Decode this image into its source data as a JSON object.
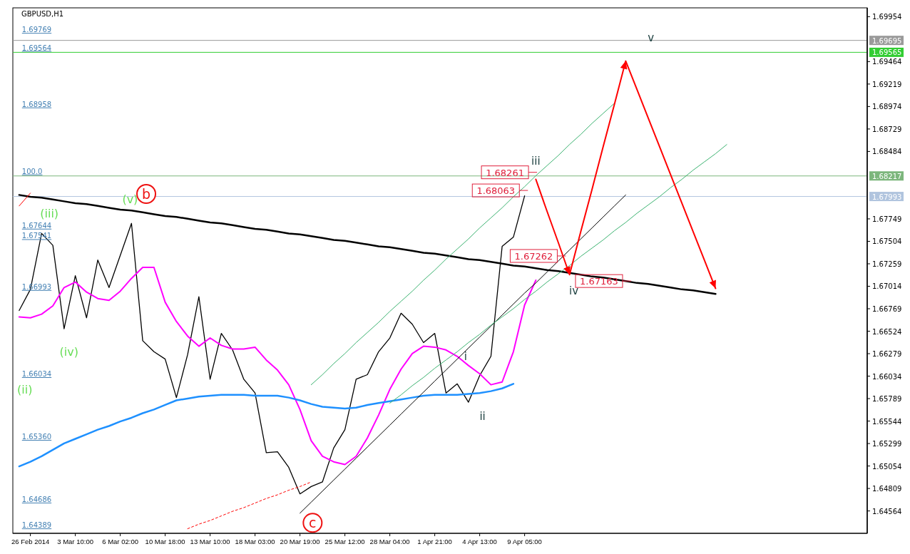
{
  "chart_data": {
    "type": "line",
    "title": "GBPUSD,H1",
    "categories": [
      null,
      "26 Feb 2014",
      null,
      null,
      null,
      "3 Mar 10:00",
      null,
      null,
      null,
      "6 Mar 02:00",
      null,
      null,
      null,
      "10 Mar 18:00",
      null,
      null,
      null,
      "13 Mar 10:00",
      null,
      null,
      null,
      "18 Mar 03:00",
      null,
      null,
      null,
      "20 Mar 19:00",
      null,
      null,
      null,
      "25 Mar 12:00",
      null,
      null,
      null,
      "28 Mar 04:00",
      null,
      null,
      null,
      "1 Apr 21:00",
      null,
      null,
      null,
      "4 Apr 13:00",
      null,
      null,
      null,
      "9 Apr 05:00",
      null,
      null,
      null,
      null,
      null,
      null,
      null,
      null,
      null,
      null,
      null,
      null,
      null,
      null,
      null,
      null,
      null,
      null,
      null,
      null,
      null,
      null,
      null,
      null,
      null,
      null,
      null,
      null,
      null,
      null
    ],
    "ylim": [
      1.6432,
      1.7005
    ],
    "yticks": [
      1.64564,
      1.64809,
      1.65054,
      1.65299,
      1.65544,
      1.65789,
      1.66034,
      1.66279,
      1.66524,
      1.66769,
      1.67014,
      1.67259,
      1.67504,
      1.67749,
      1.68484,
      1.68729,
      1.68974,
      1.69219,
      1.69464,
      1.69954
    ],
    "grid": false,
    "marker": "none",
    "series": [
      {
        "color": "#000000",
        "values": [
          1.6675,
          1.6698,
          1.6759,
          1.6746,
          1.6655,
          1.6713,
          1.6667,
          1.673,
          1.67,
          1.6735,
          1.677,
          1.6642,
          1.663,
          1.6622,
          1.658,
          1.6627,
          1.669,
          1.66,
          1.665,
          1.6632,
          1.66,
          1.6585,
          1.652,
          1.6521,
          1.6504,
          1.6475,
          1.6483,
          1.6488,
          1.6525,
          1.6545,
          1.66,
          1.6605,
          1.663,
          1.6645,
          1.6672,
          1.666,
          1.664,
          1.665,
          1.6585,
          1.6595,
          1.6575,
          1.6604,
          1.6625,
          1.6745,
          1.6755,
          1.68,
          null,
          null,
          null,
          null,
          null,
          null,
          null,
          null,
          null,
          null,
          null,
          null,
          null,
          null,
          null,
          null,
          null,
          null,
          null,
          null,
          null,
          null,
          null,
          null,
          null,
          null,
          null,
          null,
          null,
          null
        ]
      },
      {
        "color": "#ff00ff",
        "values": [
          1.6668,
          1.6667,
          1.6671,
          1.668,
          1.67,
          1.6706,
          1.6695,
          1.6688,
          1.6686,
          1.6696,
          1.671,
          1.6722,
          1.6722,
          1.6684,
          1.6663,
          1.6647,
          1.6636,
          1.6645,
          1.6637,
          1.6633,
          1.6633,
          1.6635,
          1.6621,
          1.661,
          1.6594,
          1.6567,
          1.6533,
          1.6516,
          1.651,
          1.6507,
          1.6516,
          1.6536,
          1.6561,
          1.6589,
          1.6611,
          1.6628,
          1.6636,
          1.6635,
          1.6632,
          1.6625,
          1.6615,
          1.6606,
          1.6594,
          1.6597,
          1.663,
          1.6681,
          1.6708,
          null,
          null,
          null,
          null,
          null,
          null,
          null,
          null,
          null,
          null,
          null,
          null,
          null,
          null,
          null,
          null,
          null,
          null,
          null,
          null,
          null,
          null,
          null,
          null,
          null,
          null,
          null,
          null,
          null
        ]
      },
      {
        "color": "#1e90ff",
        "values": [
          1.6505,
          1.651,
          1.6516,
          1.6523,
          1.653,
          1.6535,
          1.654,
          1.6545,
          1.6549,
          1.6554,
          1.6558,
          1.6563,
          1.6567,
          1.6572,
          1.6577,
          1.6579,
          1.6581,
          1.6582,
          1.6583,
          1.6583,
          1.6583,
          1.6582,
          1.6582,
          1.6582,
          1.658,
          1.6577,
          1.6573,
          1.657,
          1.6569,
          1.6568,
          1.6569,
          1.6572,
          1.6574,
          1.6576,
          1.6578,
          1.658,
          1.6582,
          1.6583,
          1.6583,
          1.6583,
          1.6584,
          1.6585,
          1.6587,
          1.659,
          1.6595,
          null,
          null,
          null,
          null,
          null,
          null,
          null,
          null,
          null,
          null,
          null,
          null,
          null,
          null,
          null,
          null,
          null,
          null,
          null,
          null,
          null,
          null,
          null,
          null,
          null,
          null,
          null,
          null,
          null,
          null,
          null
        ]
      },
      {
        "color": "#000000",
        "values": [
          1.6801,
          1.6799,
          1.6798,
          1.6796,
          1.6794,
          1.6792,
          1.6791,
          1.6789,
          1.6787,
          1.6785,
          1.6784,
          1.6782,
          1.678,
          1.6778,
          1.6777,
          1.6775,
          1.6773,
          1.6771,
          1.677,
          1.6768,
          1.6766,
          1.6764,
          1.6763,
          1.6761,
          1.6759,
          1.6758,
          1.6756,
          1.6754,
          1.6752,
          1.6751,
          1.6749,
          1.6747,
          1.6745,
          1.6744,
          1.6742,
          1.674,
          1.6738,
          1.6737,
          1.6735,
          1.6733,
          1.6731,
          1.673,
          1.6728,
          1.6726,
          1.6724,
          1.6723,
          1.6721,
          1.6719,
          1.6718,
          1.6716,
          1.6714,
          1.6712,
          1.6711,
          1.6709,
          1.6707,
          1.6705,
          1.6704,
          1.6702,
          1.67,
          1.6698,
          1.6697,
          1.6695,
          1.6693,
          null,
          null,
          null,
          null,
          null,
          null,
          null,
          null,
          null,
          null,
          null,
          null,
          null
        ]
      },
      {
        "color": "#3cb371",
        "values": [
          null,
          null,
          null,
          null,
          null,
          null,
          null,
          null,
          null,
          null,
          null,
          null,
          null,
          null,
          null,
          null,
          null,
          null,
          null,
          null,
          null,
          null,
          null,
          null,
          null,
          null,
          1.6594,
          1.6605,
          1.6617,
          1.6628,
          1.664,
          1.6651,
          1.6662,
          1.6674,
          1.6685,
          1.6696,
          1.6708,
          1.6719,
          1.6731,
          1.6742,
          1.6753,
          1.6765,
          1.6776,
          1.6787,
          1.6799,
          1.681,
          1.6822,
          1.6833,
          1.6844,
          1.6856,
          1.6867,
          1.6879,
          1.689,
          1.6901,
          null,
          null,
          null,
          null,
          null,
          null,
          null,
          null,
          null,
          null,
          null,
          null,
          null,
          null,
          null,
          null,
          null,
          null,
          null,
          null,
          null,
          null
        ]
      },
      {
        "color": "#000000",
        "values": [
          null,
          null,
          null,
          null,
          null,
          null,
          null,
          null,
          null,
          null,
          null,
          null,
          null,
          null,
          null,
          null,
          null,
          null,
          null,
          null,
          null,
          null,
          null,
          null,
          null,
          1.6454,
          1.6466,
          1.6478,
          1.649,
          1.6502,
          1.6514,
          1.6526,
          1.6538,
          1.655,
          1.6562,
          1.6574,
          1.6586,
          1.6598,
          1.661,
          1.6622,
          1.6634,
          1.6646,
          1.6658,
          1.667,
          1.6682,
          1.6694,
          1.6705,
          1.6717,
          1.6729,
          1.6741,
          1.6753,
          1.6765,
          1.6777,
          1.6789,
          1.6801,
          null,
          null,
          null,
          null,
          null,
          null,
          null,
          null,
          null,
          null,
          null,
          null,
          null,
          null,
          null,
          null,
          null,
          null,
          null,
          null,
          null
        ]
      },
      {
        "color": "#3cb371",
        "values": [
          null,
          null,
          null,
          null,
          null,
          null,
          null,
          null,
          null,
          null,
          null,
          null,
          null,
          null,
          null,
          null,
          null,
          null,
          null,
          null,
          null,
          null,
          null,
          null,
          null,
          null,
          null,
          null,
          null,
          null,
          null,
          null,
          null,
          1.6574,
          1.6583,
          1.6593,
          1.6602,
          1.6612,
          1.6621,
          1.663,
          1.664,
          1.6649,
          1.6659,
          1.6668,
          1.6677,
          1.6687,
          1.6696,
          1.6706,
          1.6715,
          1.6724,
          1.6734,
          1.6743,
          1.6752,
          1.6762,
          1.6771,
          1.6781,
          1.679,
          1.6799,
          1.6809,
          1.6818,
          1.6828,
          1.6837,
          1.6846,
          1.6856,
          null,
          null,
          null,
          null,
          null,
          null,
          null,
          null,
          null,
          null,
          null,
          null
        ]
      },
      {
        "color": "#ff0000",
        "line_style": "dashed",
        "values": [
          null,
          null,
          null,
          null,
          null,
          null,
          null,
          null,
          null,
          null,
          null,
          null,
          null,
          null,
          null,
          1.6437,
          1.6442,
          1.6446,
          1.6451,
          1.6456,
          1.646,
          1.6465,
          1.647,
          1.6474,
          1.6479,
          1.6483,
          1.6488,
          null,
          null,
          null,
          null,
          null,
          null,
          null,
          null,
          null,
          null,
          null,
          null,
          null,
          null,
          null,
          null,
          null,
          null,
          null,
          null,
          null,
          null,
          null,
          null,
          null,
          null,
          null,
          null,
          null,
          null,
          null,
          null,
          null,
          null,
          null,
          null,
          null,
          null,
          null,
          null,
          null,
          null,
          null,
          null,
          null,
          null,
          null,
          null,
          null
        ]
      },
      {
        "color": "#ff0000",
        "values": [
          1.6789,
          1.6803,
          null,
          null,
          null,
          null,
          null,
          null,
          null,
          null,
          null,
          null,
          null,
          null,
          null,
          null,
          null,
          null,
          null,
          null,
          null,
          null,
          null,
          null,
          null,
          null,
          null,
          null,
          null,
          null,
          null,
          null,
          null,
          null,
          null,
          null,
          null,
          null,
          null,
          null,
          null,
          null,
          null,
          null,
          null,
          null,
          null,
          null,
          null,
          null,
          null,
          null,
          null,
          null,
          null,
          null,
          null,
          null,
          null,
          null,
          null,
          null,
          null,
          null,
          null,
          null,
          null,
          null,
          null,
          null,
          null,
          null,
          null,
          null,
          null,
          null
        ]
      },
      {
        "color": "#ff0000",
        "values": [
          null,
          null,
          null,
          null,
          null,
          null,
          null,
          null,
          null,
          null,
          null,
          null,
          null,
          null,
          null,
          null,
          null,
          null,
          null,
          null,
          null,
          null,
          null,
          null,
          null,
          null,
          null,
          null,
          null,
          null,
          null,
          null,
          null,
          null,
          null,
          null,
          null,
          null,
          null,
          null,
          null,
          null,
          null,
          null,
          null,
          null,
          1.6818,
          1.6783,
          1.6749,
          1.6714,
          1.6761,
          1.6807,
          1.6854,
          1.69,
          1.6947,
          1.6916,
          1.6885,
          1.6854,
          1.6823,
          1.6792,
          1.6761,
          1.673,
          1.6699,
          null,
          null,
          null,
          null,
          null,
          null,
          null,
          null,
          null,
          null,
          null,
          null,
          null
        ]
      }
    ],
    "ref_lines": [
      {
        "axis": "y",
        "value": 1.69695,
        "label": "1.69695",
        "color": "#9a9a9a"
      },
      {
        "axis": "y",
        "value": 1.69565,
        "label": "1.69565",
        "color": "#32cd32"
      },
      {
        "axis": "y",
        "value": 1.68217,
        "label": "1.68217",
        "color": "#7cb67c"
      },
      {
        "axis": "y",
        "value": 1.67993,
        "label": "1.67993",
        "color": "#b0c4de"
      }
    ],
    "annotations": [
      "1.69769",
      {
        "text": "1.69564",
        "y": 1.69564
      },
      "1.68958",
      {
        "text": "100.0",
        "y": 1.68217
      },
      "1.67644",
      "1.67541",
      "1.66993",
      "1.66034",
      "1.65360",
      "1.64686",
      "1.64389",
      "1.68261",
      "1.68063",
      "1.67262",
      "1.67163",
      "(iii)",
      "(v)",
      "(iv)",
      "(ii)",
      "b",
      "c",
      "i",
      "ii",
      "iii",
      "iv",
      "v"
    ]
  }
}
